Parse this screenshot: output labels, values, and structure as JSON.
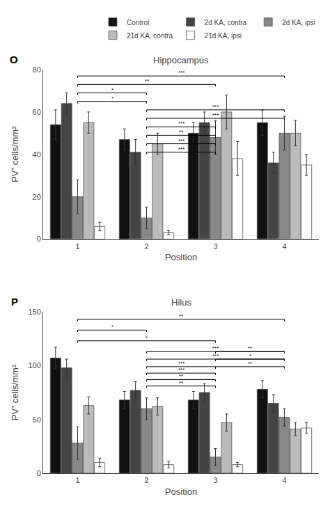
{
  "chart_data": [
    {
      "type": "bar",
      "title": "Hippocampus",
      "xlabel": "Position",
      "ylabel": "PV⁺ cells/mm²",
      "categories": [
        "1",
        "2",
        "3",
        "4"
      ],
      "series": [
        {
          "name": "Control",
          "color": "#111111",
          "values": [
            54,
            47,
            50,
            55
          ],
          "errors": [
            7,
            5,
            5,
            6
          ]
        },
        {
          "name": "2d KA, contra",
          "color": "#444444",
          "values": [
            64,
            41,
            55,
            36
          ],
          "errors": [
            5,
            6,
            5,
            5
          ]
        },
        {
          "name": "2d KA, ipsi",
          "color": "#888888",
          "values": [
            20,
            10,
            48,
            50
          ],
          "errors": [
            8,
            5,
            8,
            8
          ]
        },
        {
          "name": "21d KA, contra",
          "color": "#bbbbbb",
          "values": [
            55,
            45,
            60,
            50
          ],
          "errors": [
            5,
            5,
            8,
            6
          ]
        },
        {
          "name": "21d KA, ipsi",
          "color": "#ffffff",
          "values": [
            6,
            3,
            38,
            35
          ],
          "errors": [
            2,
            1,
            8,
            5
          ]
        }
      ],
      "ylim": [
        0,
        80
      ],
      "yticks": [
        0,
        20,
        40,
        60,
        80
      ],
      "grid": false,
      "legend": "upper right",
      "annotations": [
        {
          "text": "O"
        },
        {
          "x1": "1",
          "x2": "4",
          "y": 77,
          "text": "***"
        },
        {
          "x1": "1",
          "x2": "3",
          "y": 73,
          "text": "**"
        },
        {
          "x1": "1",
          "x2": "2",
          "y": 69,
          "text": "*"
        },
        {
          "x1": "1",
          "x2": "2",
          "y": 65,
          "text": "*"
        },
        {
          "x1": "2",
          "x2": "4",
          "y": 61,
          "text": "***"
        },
        {
          "x1": "2",
          "x2": "4",
          "y": 57,
          "text": "***"
        },
        {
          "x1": "2",
          "x2": "3",
          "y": 53,
          "text": "***"
        },
        {
          "x1": "2",
          "x2": "3",
          "y": 49,
          "text": "**"
        },
        {
          "x1": "2",
          "x2": "3",
          "y": 45,
          "text": "***"
        },
        {
          "x1": "2",
          "x2": "3",
          "y": 41,
          "text": "***"
        }
      ]
    },
    {
      "type": "bar",
      "title": "Hilus",
      "xlabel": "Position",
      "ylabel": "PV⁺ cells/mm²",
      "categories": [
        "1",
        "2",
        "3",
        "4"
      ],
      "series": [
        {
          "name": "Control",
          "color": "#111111",
          "values": [
            107,
            68,
            68,
            78
          ],
          "errors": [
            10,
            8,
            8,
            8
          ]
        },
        {
          "name": "2d KA, contra",
          "color": "#444444",
          "values": [
            98,
            77,
            75,
            65
          ],
          "errors": [
            8,
            8,
            8,
            8
          ]
        },
        {
          "name": "2d KA, ipsi",
          "color": "#888888",
          "values": [
            28,
            60,
            15,
            52
          ],
          "errors": [
            15,
            10,
            8,
            8
          ]
        },
        {
          "name": "21d KA, contra",
          "color": "#bbbbbb",
          "values": [
            63,
            62,
            47,
            41
          ],
          "errors": [
            8,
            8,
            8,
            6
          ]
        },
        {
          "name": "21d KA, ipsi",
          "color": "#ffffff",
          "values": [
            10,
            8,
            8,
            42
          ],
          "errors": [
            4,
            3,
            2,
            5
          ]
        }
      ],
      "ylim": [
        0,
        150
      ],
      "yticks": [
        0,
        50,
        100,
        150
      ],
      "grid": false,
      "annotations": [
        {
          "text": "P"
        },
        {
          "x1": "1",
          "x2": "4",
          "y": 143,
          "text": "**"
        },
        {
          "x1": "1",
          "x2": "2",
          "y": 133,
          "text": "*"
        },
        {
          "x1": "1",
          "x2": "3",
          "y": 123,
          "text": "*"
        },
        {
          "x1": "2",
          "x2": "4",
          "y": 113,
          "text": "***"
        },
        {
          "x1": "2",
          "x2": "4",
          "y": 106,
          "text": "***"
        },
        {
          "x1": "2",
          "x2": "3",
          "y": 99,
          "text": "***"
        },
        {
          "x1": "2",
          "x2": "3",
          "y": 93,
          "text": "***"
        },
        {
          "x1": "2",
          "x2": "3",
          "y": 87,
          "text": "**"
        },
        {
          "x1": "3",
          "x2": "4",
          "y": 113,
          "text": "**"
        },
        {
          "x1": "3",
          "x2": "4",
          "y": 106,
          "text": "*"
        },
        {
          "x1": "3",
          "x2": "4",
          "y": 99,
          "text": "**"
        },
        {
          "x1": "2",
          "x2": "3",
          "y": 81,
          "text": "**"
        }
      ]
    }
  ]
}
